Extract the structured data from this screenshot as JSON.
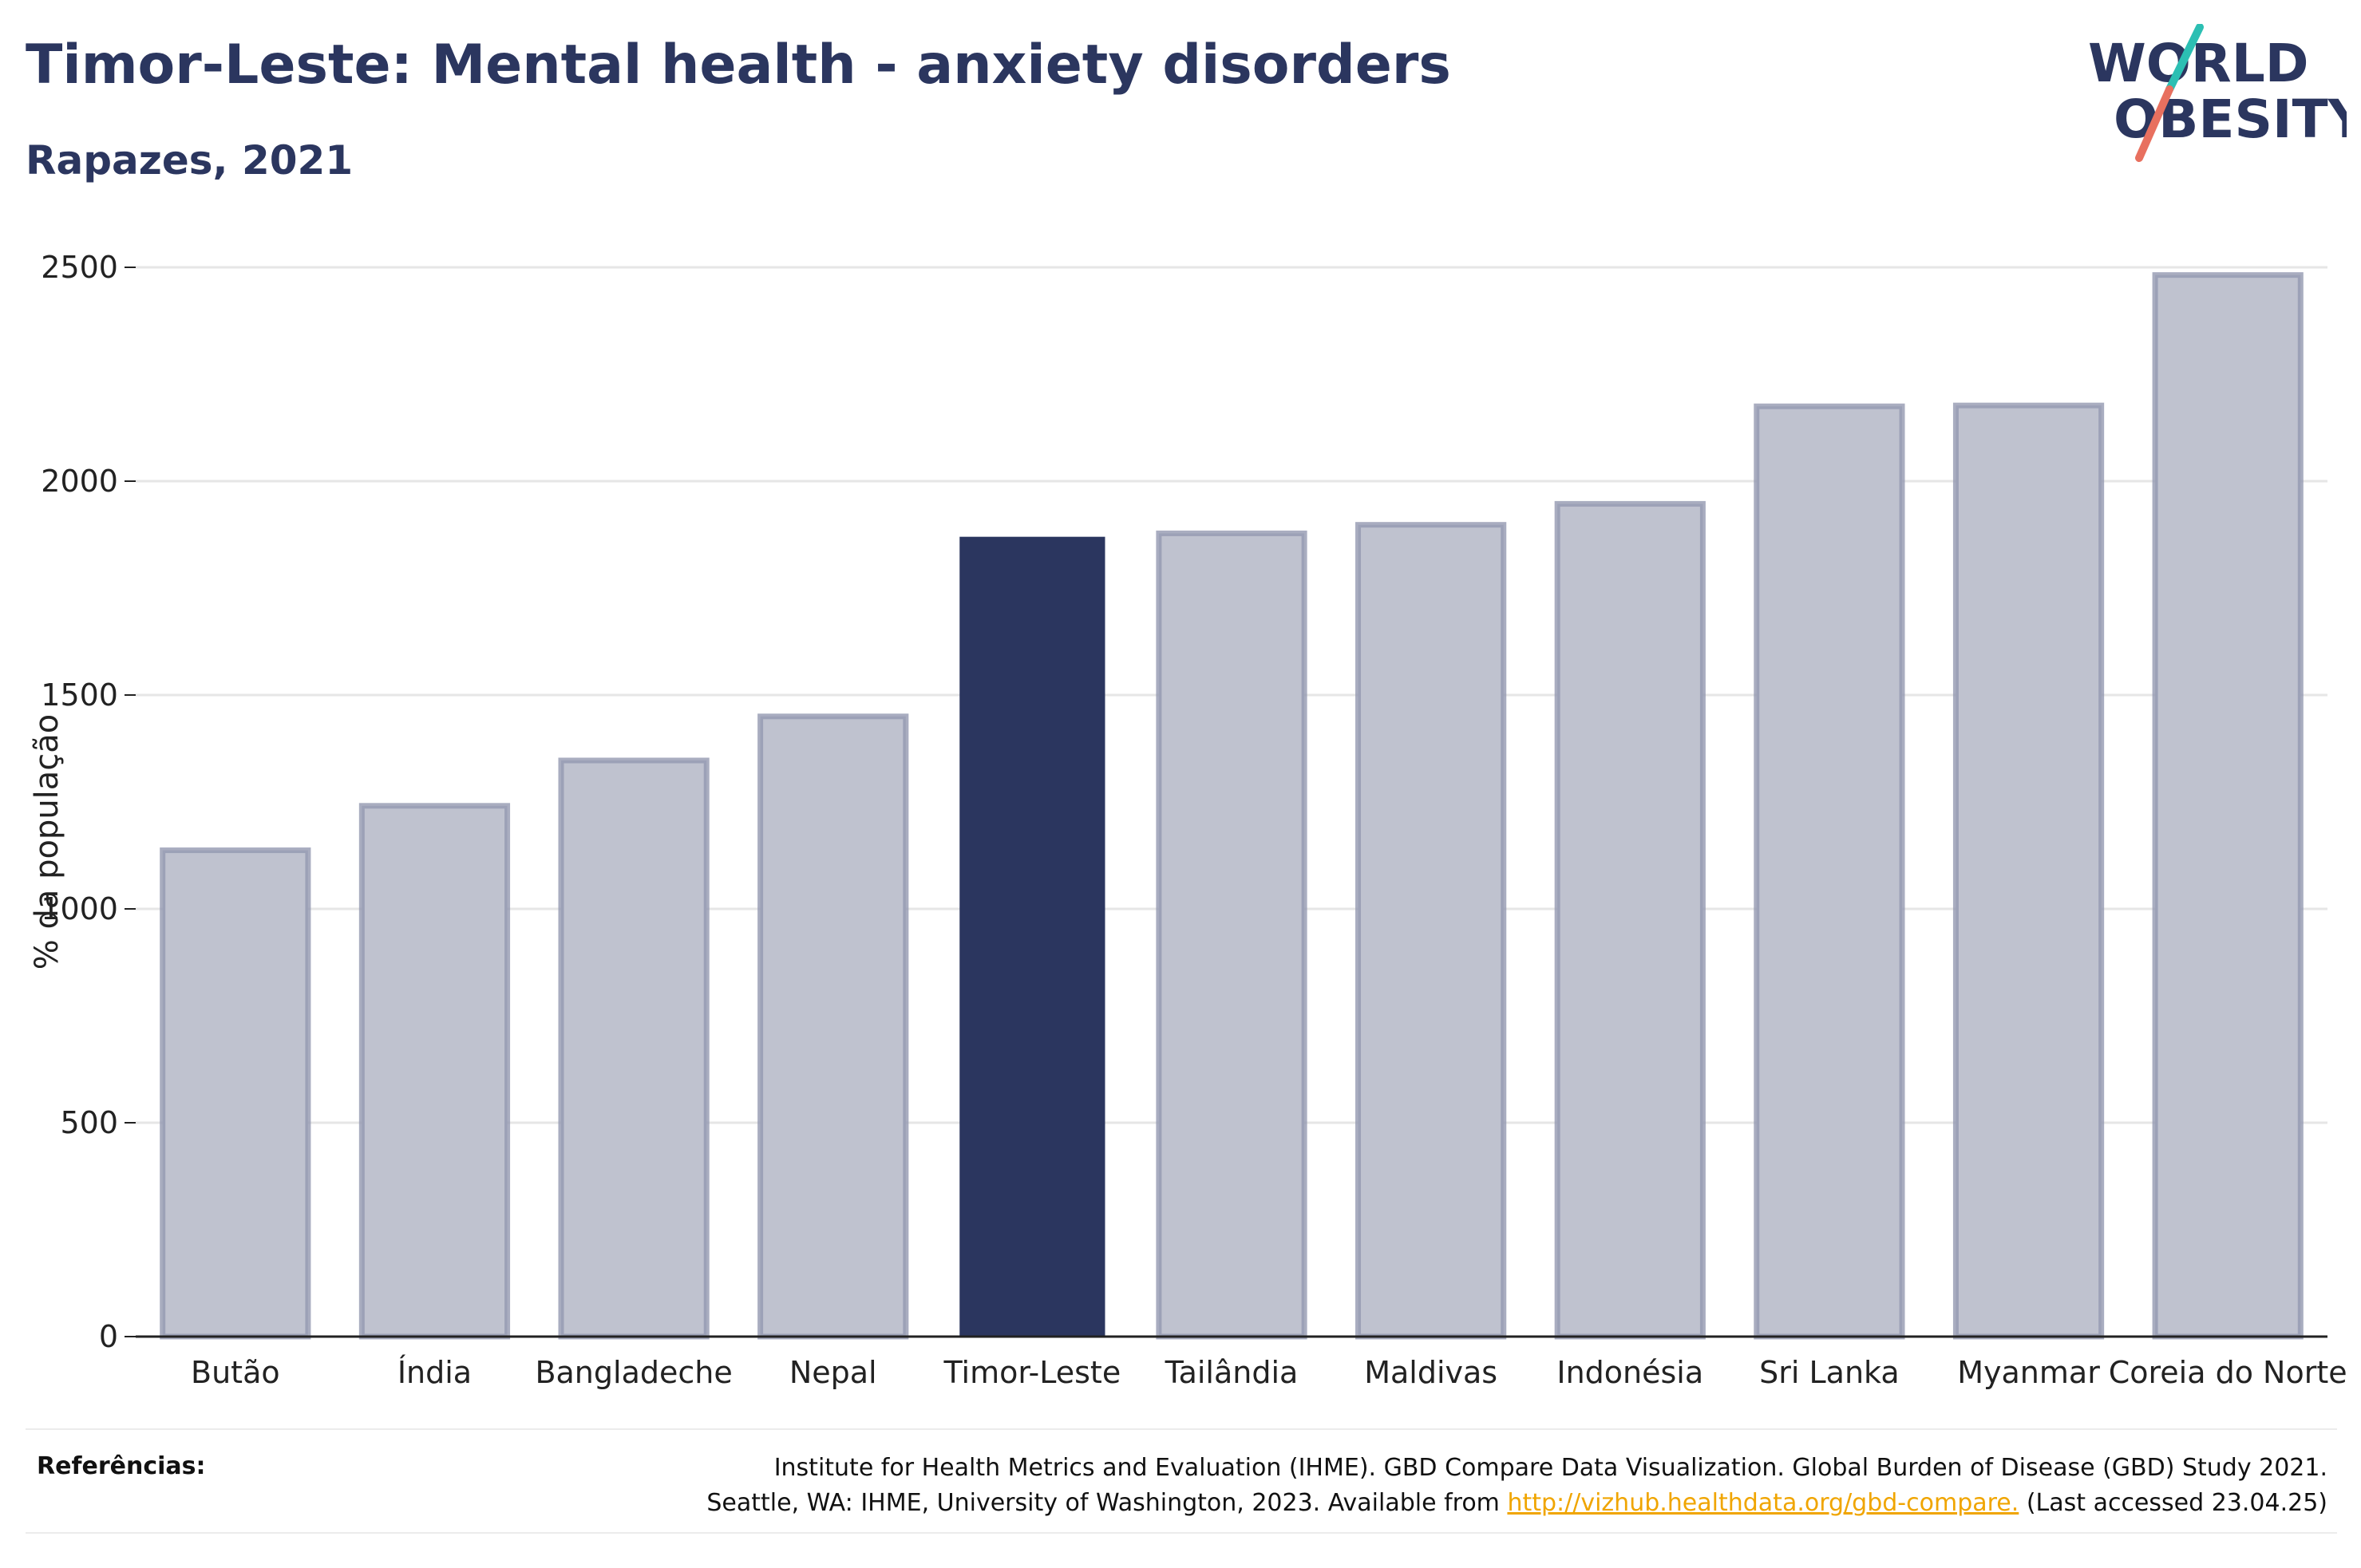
{
  "header": {
    "title": "Timor-Leste: Mental health - anxiety disorders",
    "subtitle": "Rapazes, 2021"
  },
  "logo": {
    "line1": "WORLD",
    "line2": "OBESITY",
    "icon": "slash-mark-icon",
    "colors": {
      "text": "#2b365f",
      "slash_top": "#2cbfb3",
      "slash_bottom": "#e8705f"
    }
  },
  "chart_data": {
    "type": "bar",
    "categories": [
      "Butão",
      "Índia",
      "Bangladeche",
      "Nepal",
      "Timor-Leste",
      "Tailândia",
      "Maldivas",
      "Indonésia",
      "Sri Lanka",
      "Myanmar",
      "Coreia do Norte"
    ],
    "values": [
      1137,
      1241,
      1347,
      1450,
      1870,
      1878,
      1898,
      1947,
      2175,
      2177,
      2482
    ],
    "highlight": "Timor-Leste",
    "ylabel": "% da população",
    "xlabel": "",
    "ylim": [
      0,
      2500
    ],
    "yticks": [
      0,
      500,
      1000,
      1500,
      2000,
      2500
    ],
    "grid": true,
    "colors": {
      "bar": "#bfc2cf",
      "bar_border": "#9499b0",
      "highlight": "#2b365f",
      "axis": "#222222",
      "grid": "#e6e6e6"
    }
  },
  "references": {
    "label": "Referências:",
    "line1": "Institute for Health Metrics and Evaluation (IHME). GBD Compare Data Visualization. Global Burden of Disease (GBD) Study 2021.",
    "line2_before": "Seattle, WA: IHME, University of Washington, 2023. Available from ",
    "link": "http://vizhub.healthdata.org/gbd-compare.",
    "line2_after": " (Last accessed 23.04.25)"
  }
}
